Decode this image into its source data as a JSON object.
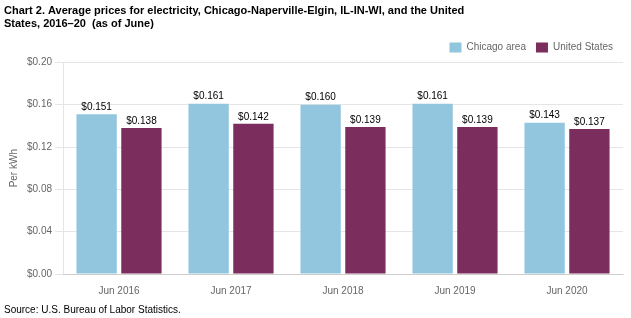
{
  "chart_data": {
    "type": "bar",
    "title": [
      "Chart 2. Average prices for electricity, Chicago-Naperville-Elgin, IL-IN-WI, and the United",
      "States, 2016–20  (as of June)"
    ],
    "ylabel": "Per kWh",
    "annotation": "Source: U.S. Bureau of Labor Statistics.",
    "categories": [
      "Jun 2016",
      "Jun 2017",
      "Jun 2018",
      "Jun 2019",
      "Jun 2020"
    ],
    "series": [
      {
        "name": "Chicago area",
        "color": "#92C5DE",
        "values": [
          0.151,
          0.161,
          0.16,
          0.161,
          0.143
        ],
        "value_labels": [
          "$0.151",
          "$0.161",
          "$0.160",
          "$0.161",
          "$0.143"
        ]
      },
      {
        "name": "United States",
        "color": "#7B2D5E",
        "values": [
          0.138,
          0.142,
          0.139,
          0.139,
          0.137
        ],
        "value_labels": [
          "$0.138",
          "$0.142",
          "$0.139",
          "$0.139",
          "$0.137"
        ]
      }
    ],
    "ylim": [
      0.0,
      0.2
    ],
    "yticks": [
      {
        "value": 0.0,
        "label": "$0.00"
      },
      {
        "value": 0.04,
        "label": "$0.04"
      },
      {
        "value": 0.08,
        "label": "$0.08"
      },
      {
        "value": 0.12,
        "label": "$0.12"
      },
      {
        "value": 0.16,
        "label": "$0.16"
      },
      {
        "value": 0.2,
        "label": "$0.20"
      }
    ],
    "grid": true,
    "legend": "top-right",
    "data_labels": true
  }
}
